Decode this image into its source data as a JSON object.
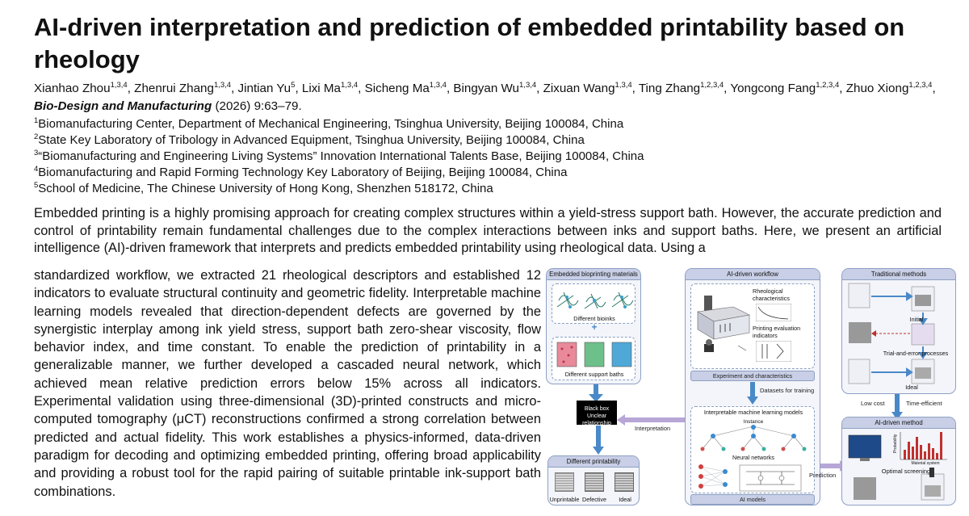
{
  "paper": {
    "title": "AI-driven interpretation and prediction of embedded printability based on rheology",
    "authors": [
      {
        "name": "Xianhao Zhou",
        "aff": "1,3,4"
      },
      {
        "name": "Zhenrui Zhang",
        "aff": "1,3,4"
      },
      {
        "name": "Jintian Yu",
        "aff": "5"
      },
      {
        "name": "Lixi Ma",
        "aff": "1,3,4"
      },
      {
        "name": "Sicheng Ma",
        "aff": "1,3,4"
      },
      {
        "name": "Bingyan Wu",
        "aff": "1,3,4"
      },
      {
        "name": "Zixuan Wang",
        "aff": "1,3,4"
      },
      {
        "name": "Ting Zhang",
        "aff": "1,2,3,4"
      },
      {
        "name": "Yongcong Fang",
        "aff": "1,2,3,4"
      },
      {
        "name": "Zhuo Xiong",
        "aff": "1,2,3,4"
      }
    ],
    "journal": "Bio-Design and Manufacturing",
    "citation_rest": "(2026) 9:63–79.",
    "affiliations": [
      {
        "num": "1",
        "text": "Biomanufacturing Center, Department of Mechanical Engineering, Tsinghua University, Beijing 100084, China"
      },
      {
        "num": "2",
        "text": "State Key Laboratory of Tribology in Advanced Equipment, Tsinghua University, Beijing 100084, China"
      },
      {
        "num": "3",
        "text": "“Biomanufacturing and Engineering Living Systems” Innovation International Talents Base, Beijing 100084, China"
      },
      {
        "num": "4",
        "text": "Biomanufacturing and Rapid Forming Technology Key Laboratory of Beijing, Beijing 100084, China"
      },
      {
        "num": "5",
        "text": "School of Medicine, The Chinese University of Hong Kong, Shenzhen 518172, China"
      }
    ],
    "abstract_top": "Embedded printing is a highly promising approach for creating complex structures within a yield-stress support bath. However, the accurate prediction and control of printability remain fundamental challenges due to the complex interactions between inks and support baths. Here, we present an artificial intelligence (AI)-driven framework that interprets and predicts embedded printability using rheological data. Using a",
    "abstract_rest": "standardized workflow, we extracted 21 rheological descriptors and established 12 indicators to evaluate structural continuity and geometric fidelity. Interpretable machine learning models revealed that direction-dependent defects are governed by the synergistic interplay among ink yield stress, support bath zero-shear viscosity, flow behavior index, and time constant. To enable the prediction of printability in a generalizable manner, we further developed a cascaded neural network, which achieved mean relative prediction errors below 15% across all indicators. Experimental validation using three-dimensional (3D)-printed constructs and micro-computed tomography (μCT) reconstructions confirmed a strong correlation between predicted and actual fidelity. This work establishes a physics-informed, data-driven paradigm for decoding and optimizing embedded printing, offering broad applicability and providing a robust tool for the rapid pairing of suitable printable ink-support bath combinations."
  },
  "figure": {
    "left_panel_title": "Embedded bioprinting materials",
    "bioinks_label": "Different bioinks",
    "plus": "+",
    "baths_label": "Different support baths",
    "blackbox": "Black box\nUnclear relationship",
    "interpretation": "Interpretation",
    "printability_title": "Different printability",
    "printability_items": [
      "Unprintable",
      "Defective",
      "Ideal"
    ],
    "workflow_title": "AI-driven workflow",
    "rheo_char": "Rheological characteristics",
    "print_eval": "Printing evaluation indicators",
    "exp_char": "Experiment and characteristics",
    "datasets": "Datasets for training",
    "iml_title": "Interpretable machine learning models",
    "instance": "Instance",
    "nn_title": "Neural networks",
    "ai_models": "AI models",
    "prediction": "Prediction",
    "traditional_title": "Traditional methods",
    "initial": "Initial",
    "trial": "Trial-and-error processes",
    "ideal": "Ideal",
    "low_cost": "Low cost",
    "time_eff": "Time-efficient",
    "ai_method_title": "AI-driven method",
    "probability": "Probability",
    "material_system": "Material system",
    "optimal": "Optimal screening",
    "colors": {
      "accent": "#4a89c8",
      "panel_head": "#c8cfe6",
      "purple": "#b7a6d6",
      "bar_red": "#c0302e"
    }
  }
}
